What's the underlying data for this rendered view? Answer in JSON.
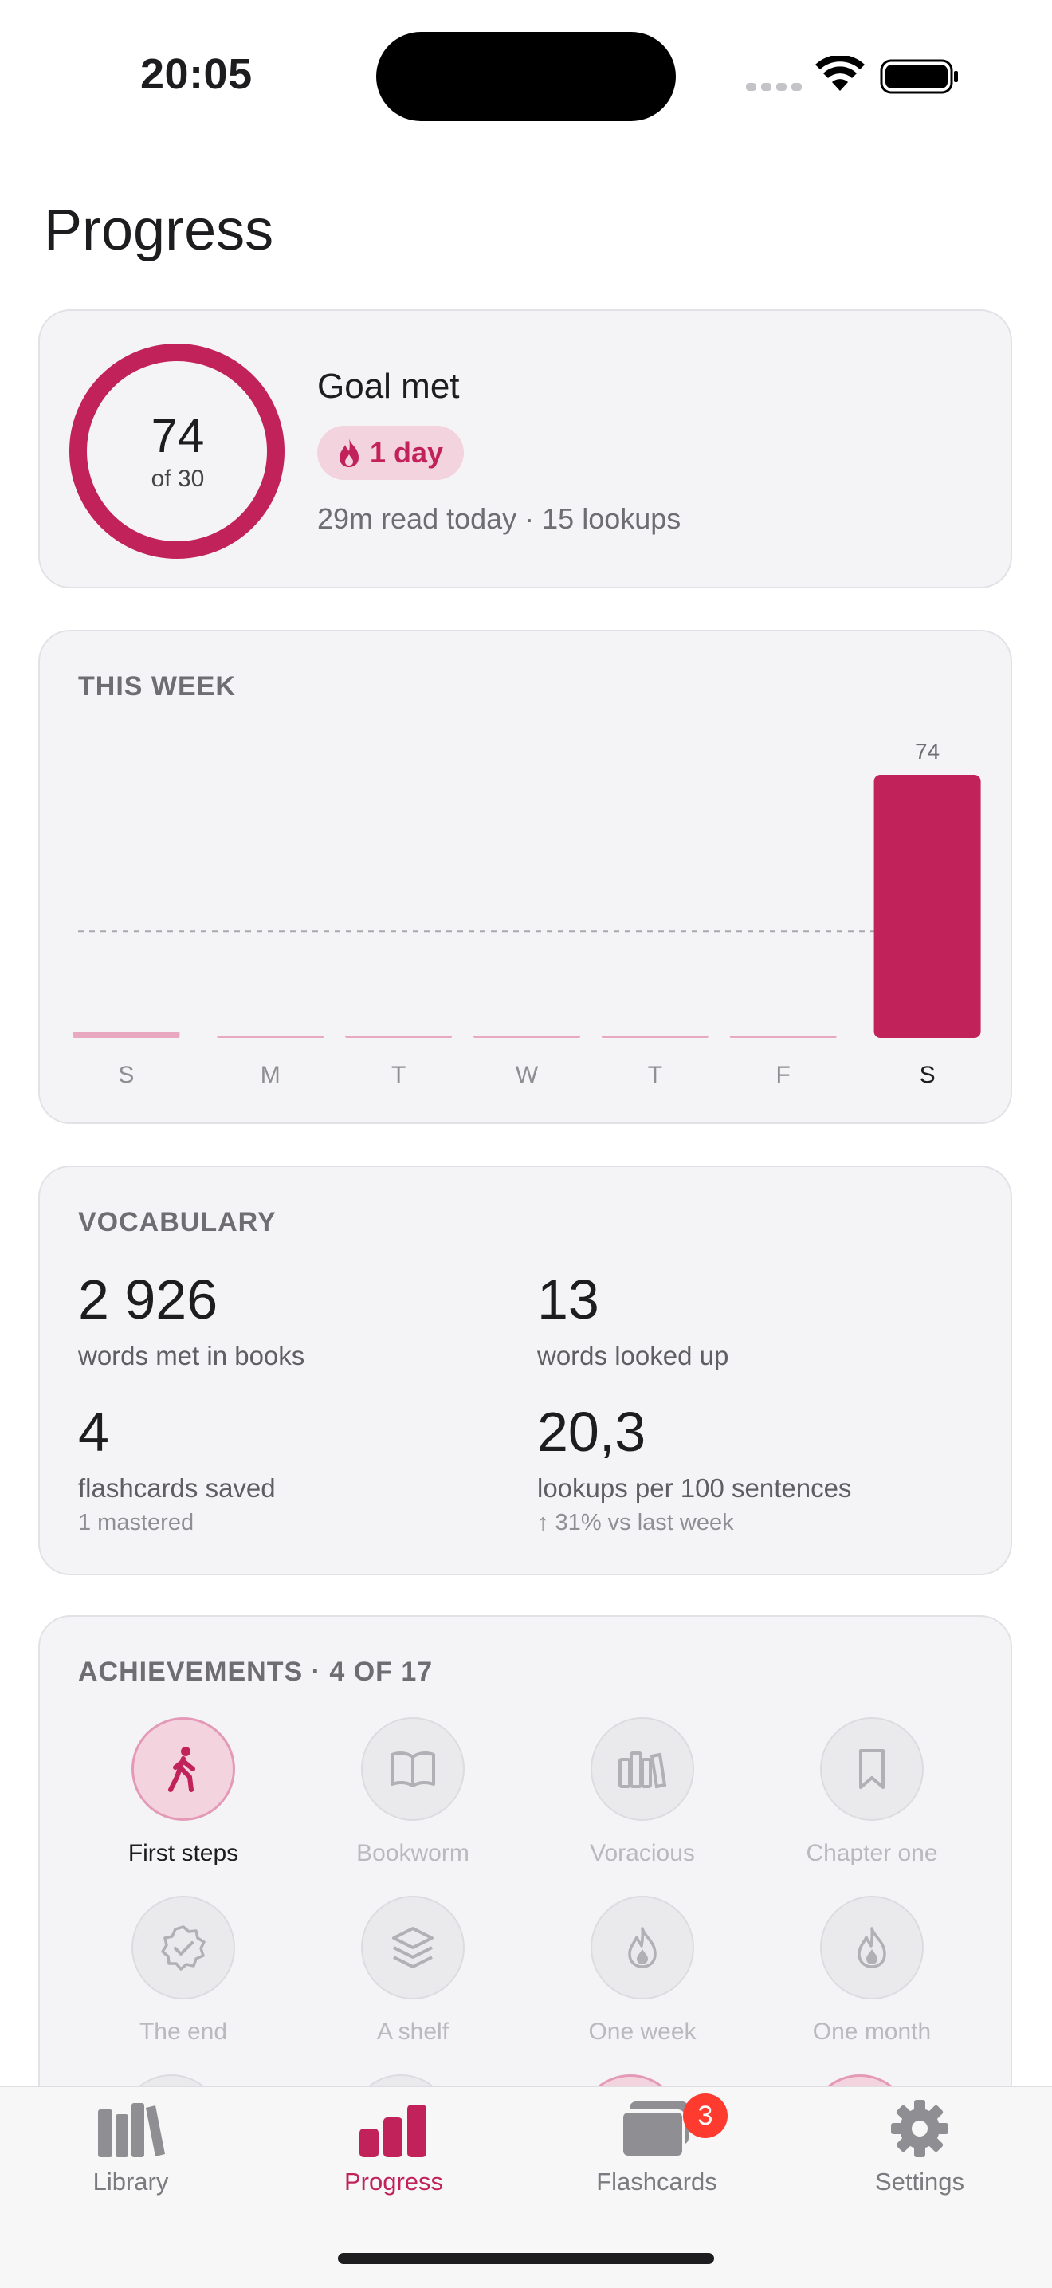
{
  "status_bar": {
    "time": "20:05"
  },
  "header": {
    "title": "Progress"
  },
  "goal": {
    "value": "74",
    "target": "of 30",
    "progress_fraction": 1.0,
    "title": "Goal met",
    "streak": "1 day",
    "meta": "29m read today · 15 lookups"
  },
  "week": {
    "label": "THIS WEEK",
    "chart_data": {
      "type": "bar",
      "categories": [
        "S",
        "M",
        "T",
        "W",
        "T",
        "F",
        "S"
      ],
      "values": [
        1,
        0,
        0,
        0,
        0,
        0,
        74
      ],
      "data_labels": [
        "",
        "",
        "",
        "",
        "",
        "",
        "74"
      ],
      "goal_line": 30,
      "ylim": [
        0,
        74
      ],
      "highlight_index": 6,
      "colors": {
        "bar_active": "#c2225a",
        "bar_inactive": "#e8a9c0"
      }
    }
  },
  "vocabulary": {
    "label": "VOCABULARY",
    "stats": [
      {
        "value": "2 926",
        "label": "words met in books",
        "sub": ""
      },
      {
        "value": "13",
        "label": "words looked up",
        "sub": ""
      },
      {
        "value": "4",
        "label": "flashcards saved",
        "sub": "1 mastered"
      },
      {
        "value": "20,3",
        "label": "lookups per 100 sentences",
        "sub": "↑ 31% vs last week"
      }
    ]
  },
  "achievements": {
    "label": "ACHIEVEMENTS · 4 OF 17",
    "items": [
      {
        "label": "First steps",
        "icon": "walking-person-icon",
        "unlocked": true
      },
      {
        "label": "Bookworm",
        "icon": "open-book-icon",
        "unlocked": false
      },
      {
        "label": "Voracious",
        "icon": "books-shelf-icon",
        "unlocked": false
      },
      {
        "label": "Chapter one",
        "icon": "bookmark-icon",
        "unlocked": false
      },
      {
        "label": "The end",
        "icon": "check-seal-icon",
        "unlocked": false
      },
      {
        "label": "A shelf",
        "icon": "layers-icon",
        "unlocked": false
      },
      {
        "label": "One week",
        "icon": "flame-icon",
        "unlocked": false
      },
      {
        "label": "One month",
        "icon": "flame-icon",
        "unlocked": false
      }
    ]
  },
  "tabbar": {
    "tabs": [
      {
        "label": "Library",
        "icon": "library-books-icon",
        "active": false
      },
      {
        "label": "Progress",
        "icon": "bar-chart-icon",
        "active": true
      },
      {
        "label": "Flashcards",
        "icon": "cards-icon",
        "active": false,
        "badge": "3"
      },
      {
        "label": "Settings",
        "icon": "gear-icon",
        "active": false
      }
    ]
  },
  "colors": {
    "accent": "#c2225a",
    "accent_soft": "#f3d3de",
    "card_bg": "#f4f4f6"
  }
}
